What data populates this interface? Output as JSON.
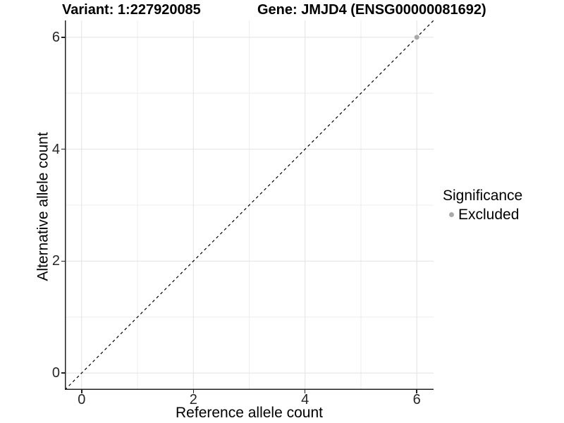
{
  "header": {
    "title_left": "Variant: 1:227920085",
    "title_right": "Gene: JMJD4 (ENSG00000081692)"
  },
  "chart_data": {
    "type": "scatter",
    "title": "Variant: 1:227920085   Gene: JMJD4 (ENSG00000081692)",
    "xlabel": "Reference allele count",
    "ylabel": "Alternative allele count",
    "xlim": [
      -0.3,
      6.3
    ],
    "ylim": [
      -0.3,
      6.3
    ],
    "x_ticks": [
      0,
      2,
      4,
      6
    ],
    "y_ticks": [
      0,
      2,
      4,
      6
    ],
    "minor_gridlines": [
      1,
      3,
      5
    ],
    "grid": true,
    "legend_position": "right",
    "identity_line": {
      "style": "dashed",
      "color": "#000000",
      "equation": "y = x"
    },
    "points": [
      {
        "x": 6,
        "y": 6,
        "significance": "Excluded"
      }
    ],
    "legend": {
      "title": "Significance",
      "items": [
        {
          "label": "Excluded",
          "color": "#a9a9a9"
        }
      ]
    },
    "colors": {
      "point_excluded": "#a9a9a9",
      "major_grid": "#e2e2e2",
      "minor_grid": "#eeeeee",
      "axis_line": "#222222",
      "tick_label": "#262626",
      "background": "#ffffff"
    }
  }
}
